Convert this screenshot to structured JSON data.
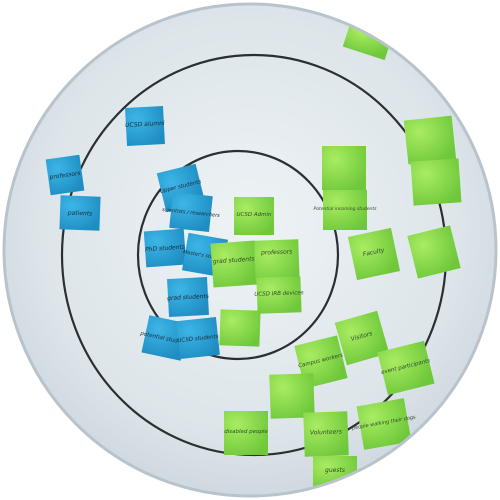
{
  "photo": {
    "description_free": true,
    "colors": {
      "board": "#dfe6ea",
      "ring": "#2a2f33",
      "blue_note": "#2aa3d6",
      "green_note": "#8fd84f"
    },
    "notes": {
      "blue": [
        {
          "text": "UCSD alumni"
        },
        {
          "text": "professors"
        },
        {
          "text": "patients"
        },
        {
          "text": "Upper students"
        },
        {
          "text": "scientists / researchers"
        },
        {
          "text": "PhD students"
        },
        {
          "text": "Master's students"
        },
        {
          "text": "grad students"
        },
        {
          "text": "potential students"
        },
        {
          "text": "UCSD students"
        }
      ],
      "green": [
        {
          "text": "UCSD Admin"
        },
        {
          "text": "grad students"
        },
        {
          "text": "professors"
        },
        {
          "text": "UCSD IRB devices"
        },
        {
          "text": "Potential incoming students"
        },
        {
          "text": "Faculty"
        },
        {
          "text": "Visitors"
        },
        {
          "text": "Campus workers"
        },
        {
          "text": "event participants"
        },
        {
          "text": "disabled people"
        },
        {
          "text": "Volunteers"
        },
        {
          "text": "people walking their dogs"
        },
        {
          "text": "guests"
        }
      ]
    }
  }
}
